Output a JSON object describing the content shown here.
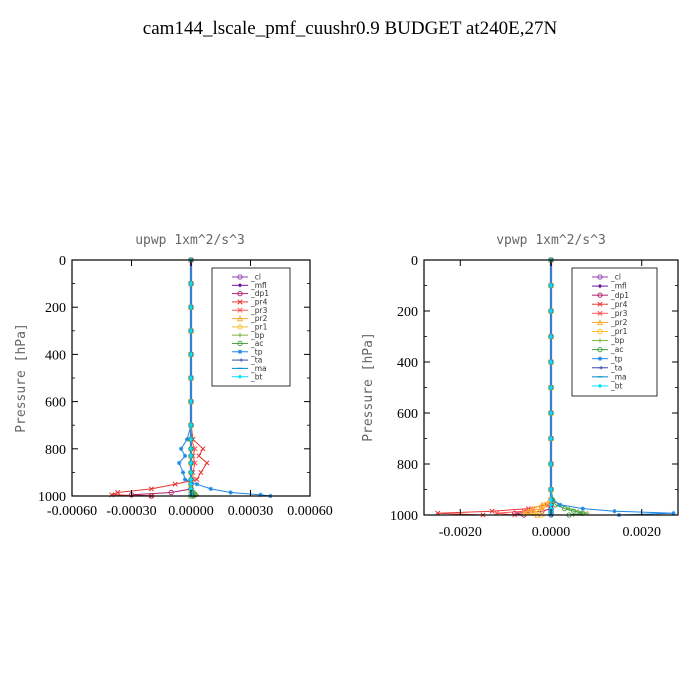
{
  "title": "cam144_lscale_pmf_cuushr0.9  BUDGET at240E,27N",
  "legend": [
    {
      "label": "_cl",
      "color": "#8e44ad"
    },
    {
      "label": "_mfl",
      "color": "#6a1b9a"
    },
    {
      "label": "_dp1",
      "color": "#b0206a"
    },
    {
      "label": "_pr4",
      "color": "#e53935"
    },
    {
      "label": "_pr3",
      "color": "#ff5252"
    },
    {
      "label": "_pr2",
      "color": "#ffa726"
    },
    {
      "label": "_pr1",
      "color": "#fbc02d"
    },
    {
      "label": "_bp",
      "color": "#7cb342"
    },
    {
      "label": "_ac",
      "color": "#43a047"
    },
    {
      "label": "_tp",
      "color": "#1e88e5"
    },
    {
      "label": "_ta",
      "color": "#3949ab"
    },
    {
      "label": "_ma",
      "color": "#0288d1"
    },
    {
      "label": "_bt",
      "color": "#00e5ff"
    }
  ],
  "chart_data": [
    {
      "type": "line",
      "title": "upwp   1xm^2/s^3",
      "xlabel": "",
      "ylabel": "Pressure [hPa]",
      "xlim": [
        -0.0006,
        0.0006
      ],
      "ylim": [
        1000,
        0
      ],
      "xticks": [
        -0.0006,
        -0.0003,
        0.0,
        0.0003,
        0.0006
      ],
      "xtick_labels": [
        "-0.00060",
        "-0.00030",
        "0.00000",
        "0.00030",
        "0.00060"
      ],
      "yticks": [
        0,
        200,
        400,
        600,
        800,
        1000
      ],
      "ytick_labels": [
        "0",
        "200",
        "400",
        "600",
        "800",
        "1000"
      ],
      "pressure": [
        0,
        100,
        200,
        300,
        400,
        500,
        600,
        700,
        760,
        800,
        830,
        860,
        900,
        930,
        950,
        970,
        985,
        995,
        1000
      ],
      "series": [
        {
          "name": "_cl",
          "color": "#8e44ad",
          "values": [
            0,
            0,
            0,
            0,
            0,
            0,
            0,
            0,
            0,
            0,
            0,
            0,
            0,
            0,
            0,
            0,
            0,
            0,
            0
          ]
        },
        {
          "name": "_mfl",
          "color": "#6a1b9a",
          "values": [
            0,
            0,
            0,
            0,
            0,
            0,
            0,
            0,
            0,
            0,
            0,
            0,
            0,
            0,
            0,
            0,
            0,
            0,
            0
          ]
        },
        {
          "name": "_dp1",
          "color": "#b0206a",
          "values": [
            0,
            0,
            0,
            0,
            0,
            0,
            0,
            0,
            0,
            0,
            0,
            0,
            0,
            0,
            0,
            0,
            -0.0001,
            -0.0003,
            -0.0002
          ]
        },
        {
          "name": "_pr4",
          "color": "#e53935",
          "values": [
            0,
            0,
            0,
            0,
            0,
            0,
            0,
            0,
            1e-05,
            6e-05,
            4e-05,
            8e-05,
            5e-05,
            3e-05,
            -8e-05,
            -0.0002,
            -0.00037,
            -0.0004,
            -0.0002
          ]
        },
        {
          "name": "_pr3",
          "color": "#ff5252",
          "values": [
            0,
            0,
            0,
            0,
            0,
            0,
            0,
            0,
            0,
            2e-05,
            1e-05,
            2e-05,
            1e-05,
            1e-05,
            0,
            0,
            0,
            0,
            0
          ]
        },
        {
          "name": "_pr2",
          "color": "#ffa726",
          "values": [
            0,
            0,
            0,
            0,
            0,
            0,
            0,
            0,
            0,
            0,
            0,
            0,
            0,
            0,
            0,
            0,
            0,
            0,
            0
          ]
        },
        {
          "name": "_pr1",
          "color": "#fbc02d",
          "values": [
            0,
            0,
            0,
            0,
            0,
            0,
            0,
            0,
            0,
            0,
            0,
            0,
            0,
            0,
            0,
            0,
            0,
            0,
            0
          ]
        },
        {
          "name": "_bp",
          "color": "#7cb342",
          "values": [
            0,
            0,
            0,
            0,
            0,
            0,
            0,
            0,
            0,
            0,
            0,
            0,
            0,
            0,
            0,
            0,
            2e-05,
            3e-05,
            2e-05
          ]
        },
        {
          "name": "_ac",
          "color": "#43a047",
          "values": [
            0,
            0,
            0,
            0,
            0,
            0,
            0,
            0,
            0,
            0,
            0,
            0,
            0,
            0,
            0,
            0,
            1e-05,
            2e-05,
            1e-05
          ]
        },
        {
          "name": "_tp",
          "color": "#1e88e5",
          "values": [
            0,
            0,
            0,
            0,
            0,
            0,
            0,
            0,
            -2e-05,
            -5e-05,
            -3e-05,
            -6e-05,
            -4e-05,
            -3e-05,
            3e-05,
            0.0001,
            0.0002,
            0.00035,
            0.0004
          ]
        },
        {
          "name": "_ta",
          "color": "#3949ab",
          "values": [
            0,
            0,
            0,
            0,
            0,
            0,
            0,
            0,
            0,
            0,
            0,
            0,
            0,
            0,
            0,
            0,
            0,
            0,
            0
          ]
        },
        {
          "name": "_ma",
          "color": "#0288d1",
          "values": [
            0,
            0,
            0,
            0,
            0,
            0,
            0,
            0,
            0,
            0,
            0,
            0,
            0,
            0,
            0,
            0,
            0,
            0,
            0
          ]
        },
        {
          "name": "_bt",
          "color": "#00e5ff",
          "values": [
            0,
            0,
            0,
            0,
            0,
            0,
            0,
            0,
            0,
            0,
            0,
            0,
            0,
            0,
            0,
            0,
            0,
            0,
            0
          ]
        }
      ]
    },
    {
      "type": "line",
      "title": "vpwp   1xm^2/s^3",
      "xlabel": "",
      "ylabel": "Pressure [hPa]",
      "xlim": [
        -0.0028,
        0.0028
      ],
      "ylim": [
        1000,
        0
      ],
      "xticks": [
        -0.002,
        0.0,
        0.002
      ],
      "xtick_labels": [
        "-0.0020",
        "0.0000",
        "0.0020"
      ],
      "yticks": [
        0,
        200,
        400,
        600,
        800,
        1000
      ],
      "ytick_labels": [
        "0",
        "200",
        "400",
        "600",
        "800",
        "1000"
      ],
      "pressure": [
        0,
        100,
        200,
        300,
        400,
        500,
        600,
        700,
        800,
        900,
        940,
        960,
        975,
        985,
        993,
        1000
      ],
      "series": [
        {
          "name": "_cl",
          "color": "#8e44ad",
          "values": [
            0,
            0,
            0,
            0,
            0,
            0,
            0,
            0,
            0,
            0,
            0,
            0,
            0,
            0,
            0,
            0
          ]
        },
        {
          "name": "_mfl",
          "color": "#6a1b9a",
          "values": [
            0,
            0,
            0,
            0,
            0,
            0,
            0,
            0,
            0,
            0,
            0,
            0,
            0,
            0,
            0,
            0
          ]
        },
        {
          "name": "_dp1",
          "color": "#b0206a",
          "values": [
            0,
            0,
            0,
            0,
            0,
            0,
            0,
            0,
            0,
            0,
            0,
            0,
            0,
            -0.0002,
            -0.0008,
            -0.0006
          ]
        },
        {
          "name": "_pr4",
          "color": "#e53935",
          "values": [
            0,
            0,
            0,
            0,
            0,
            0,
            0,
            0,
            0,
            0,
            0,
            -0.0001,
            -0.0005,
            -0.0013,
            -0.0025,
            -0.0015
          ]
        },
        {
          "name": "_pr3",
          "color": "#ff5252",
          "values": [
            0,
            0,
            0,
            0,
            0,
            0,
            0,
            0,
            0,
            0,
            0,
            -5e-05,
            -0.0002,
            -0.0006,
            -0.0012,
            -0.0008
          ]
        },
        {
          "name": "_pr2",
          "color": "#ffa726",
          "values": [
            0,
            0,
            0,
            0,
            0,
            0,
            0,
            0,
            0,
            0,
            0,
            -0.0002,
            -0.0004,
            -0.0005,
            -0.0006,
            -0.0003
          ]
        },
        {
          "name": "_pr1",
          "color": "#fbc02d",
          "values": [
            0,
            0,
            0,
            0,
            0,
            0,
            0,
            0,
            0,
            0,
            0,
            -0.0001,
            -0.0002,
            -0.0003,
            -0.0004,
            -0.0002
          ]
        },
        {
          "name": "_bp",
          "color": "#7cb342",
          "values": [
            0,
            0,
            0,
            0,
            0,
            0,
            0,
            0,
            0,
            0,
            5e-05,
            0.0002,
            0.0004,
            0.0006,
            0.0008,
            0.0005
          ]
        },
        {
          "name": "_ac",
          "color": "#43a047",
          "values": [
            0,
            0,
            0,
            0,
            0,
            0,
            0,
            0,
            0,
            0,
            3e-05,
            0.0001,
            0.0003,
            0.0005,
            0.0007,
            0.0004
          ]
        },
        {
          "name": "_tp",
          "color": "#1e88e5",
          "values": [
            0,
            0,
            0,
            0,
            0,
            0,
            0,
            0,
            0,
            0,
            2e-05,
            0.0002,
            0.0007,
            0.0014,
            0.0027,
            0.0015
          ]
        },
        {
          "name": "_ta",
          "color": "#3949ab",
          "values": [
            0,
            0,
            0,
            0,
            0,
            0,
            0,
            0,
            0,
            0,
            0,
            0,
            0,
            0,
            0,
            0
          ]
        },
        {
          "name": "_ma",
          "color": "#0288d1",
          "values": [
            0,
            0,
            0,
            0,
            0,
            0,
            0,
            0,
            0,
            0,
            0,
            0,
            0,
            0,
            0,
            0
          ]
        },
        {
          "name": "_bt",
          "color": "#00e5ff",
          "values": [
            0,
            0,
            0,
            0,
            0,
            0,
            0,
            0,
            0,
            0,
            0,
            0,
            0,
            0,
            0,
            0
          ]
        }
      ]
    }
  ]
}
